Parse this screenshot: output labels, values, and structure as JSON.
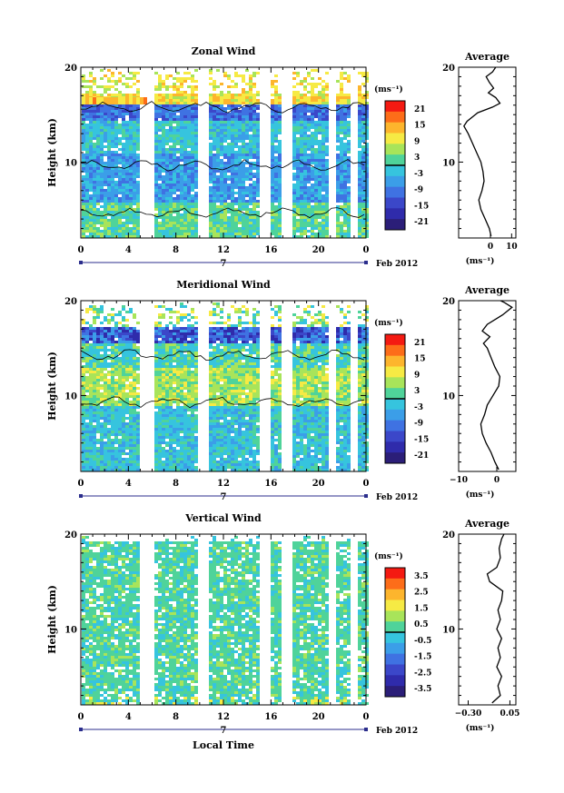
{
  "chart_data": [
    {
      "type": "heatmap",
      "title": "Zonal Wind",
      "ylabel": "Height (km)",
      "yticks": [
        "20",
        "10"
      ],
      "xticks": [
        "0",
        "4",
        "8",
        "12",
        "16",
        "20",
        "0"
      ],
      "date_marker": "7",
      "date_label": "Feb 2012",
      "ylim": [
        2,
        20
      ],
      "xlim": [
        0,
        24
      ],
      "colorbar": {
        "unit": "(ms⁻¹)",
        "ticks": [
          "21",
          "15",
          "9",
          "3",
          "-3",
          "-9",
          "-15",
          "-21"
        ],
        "colors": [
          "#f41a12",
          "#fd6d19",
          "#fdb52d",
          "#f6ea44",
          "#a8e45a",
          "#4fd39a",
          "#36c4de",
          "#3b9ee8",
          "#3f72e2",
          "#3b47c9",
          "#2f2bab",
          "#2b1e78"
        ]
      },
      "average": {
        "title": "Average",
        "xlabel": "(ms⁻¹)",
        "xticks": [
          "0",
          "10"
        ],
        "xlim": [
          -15,
          12
        ],
        "yticks": [
          "20",
          "10"
        ],
        "profile": [
          [
            2.2,
            0.3
          ],
          [
            3,
            -0.5
          ],
          [
            4,
            -2.5
          ],
          [
            5,
            -4.5
          ],
          [
            6,
            -5.5
          ],
          [
            7,
            -4
          ],
          [
            8,
            -3
          ],
          [
            9,
            -3.5
          ],
          [
            10,
            -4.5
          ],
          [
            11,
            -6.5
          ],
          [
            12,
            -8.5
          ],
          [
            13,
            -10.5
          ],
          [
            13.8,
            -12.5
          ],
          [
            14.3,
            -11
          ],
          [
            15.2,
            -6
          ],
          [
            15.8,
            1
          ],
          [
            16.2,
            4.5
          ],
          [
            16.8,
            2.5
          ],
          [
            17.3,
            -1
          ],
          [
            17.8,
            1.5
          ],
          [
            18.4,
            -0.5
          ],
          [
            19,
            -2
          ],
          [
            19.5,
            1
          ],
          [
            20,
            2.5
          ]
        ]
      }
    },
    {
      "type": "heatmap",
      "title": "Meridional Wind",
      "ylabel": "Height (km)",
      "yticks": [
        "20",
        "10"
      ],
      "xticks": [
        "0",
        "4",
        "8",
        "12",
        "16",
        "20",
        "0"
      ],
      "date_marker": "7",
      "date_label": "Feb 2012",
      "ylim": [
        2,
        20
      ],
      "xlim": [
        0,
        24
      ],
      "colorbar": {
        "unit": "(ms⁻¹)",
        "ticks": [
          "21",
          "15",
          "9",
          "3",
          "-3",
          "-9",
          "-15",
          "-21"
        ],
        "colors": [
          "#f41a12",
          "#fd6d19",
          "#fdb52d",
          "#f6ea44",
          "#a8e45a",
          "#4fd39a",
          "#36c4de",
          "#3b9ee8",
          "#3f72e2",
          "#3b47c9",
          "#2f2bab",
          "#2b1e78"
        ]
      },
      "average": {
        "title": "Average",
        "xlabel": "(ms⁻¹)",
        "xticks": [
          "-10",
          "0"
        ],
        "xlim": [
          -10,
          5
        ],
        "yticks": [
          "20",
          "10"
        ],
        "profile": [
          [
            2.2,
            0.5
          ],
          [
            3,
            -0.5
          ],
          [
            4,
            -1.5
          ],
          [
            5,
            -2.8
          ],
          [
            6,
            -3.8
          ],
          [
            7,
            -4.2
          ],
          [
            8,
            -3.2
          ],
          [
            9,
            -2.5
          ],
          [
            10,
            -1
          ],
          [
            11,
            0.5
          ],
          [
            12,
            0.8
          ],
          [
            13,
            -0.5
          ],
          [
            14,
            -1.5
          ],
          [
            15,
            -2.5
          ],
          [
            15.5,
            -3.5
          ],
          [
            16.2,
            -1.8
          ],
          [
            16.8,
            -3.8
          ],
          [
            17.5,
            -2.5
          ],
          [
            18.5,
            1.5
          ],
          [
            19.3,
            4
          ],
          [
            19.8,
            2
          ],
          [
            20,
            1
          ]
        ]
      }
    },
    {
      "type": "heatmap",
      "title": "Vertical Wind",
      "ylabel": "Height (km)",
      "xlabel": "Local Time",
      "yticks": [
        "20",
        "10"
      ],
      "xticks": [
        "0",
        "4",
        "8",
        "12",
        "16",
        "20",
        "0"
      ],
      "date_marker": "7",
      "date_label": "Feb 2012",
      "ylim": [
        2,
        20
      ],
      "xlim": [
        0,
        24
      ],
      "colorbar": {
        "unit": "(ms⁻¹)",
        "ticks": [
          "3.5",
          "2.5",
          "1.5",
          "0.5",
          "-0.5",
          "-1.5",
          "-2.5",
          "-3.5"
        ],
        "colors": [
          "#f41a12",
          "#fd6d19",
          "#fdb52d",
          "#f6ea44",
          "#a8e45a",
          "#4fd39a",
          "#36c4de",
          "#3b9ee8",
          "#3f72e2",
          "#3b47c9",
          "#2f2bab",
          "#2b1e78"
        ]
      },
      "average": {
        "title": "Average",
        "xlabel": "(ms⁻¹)",
        "xticks": [
          "-0.30",
          "0.05"
        ],
        "xlim": [
          -0.38,
          0.1
        ],
        "yticks": [
          "20",
          "10"
        ],
        "profile": [
          [
            2.2,
            -0.1
          ],
          [
            3,
            -0.03
          ],
          [
            4,
            -0.05
          ],
          [
            5,
            -0.02
          ],
          [
            6,
            -0.06
          ],
          [
            7,
            -0.03
          ],
          [
            8,
            -0.05
          ],
          [
            9,
            -0.02
          ],
          [
            10,
            -0.06
          ],
          [
            11,
            -0.03
          ],
          [
            12,
            -0.05
          ],
          [
            13,
            -0.02
          ],
          [
            14,
            -0.01
          ],
          [
            15,
            -0.12
          ],
          [
            15.8,
            -0.14
          ],
          [
            16.5,
            -0.06
          ],
          [
            17.5,
            -0.03
          ],
          [
            18.5,
            -0.04
          ],
          [
            19.5,
            -0.02
          ],
          [
            20,
            0.0
          ]
        ]
      }
    }
  ]
}
